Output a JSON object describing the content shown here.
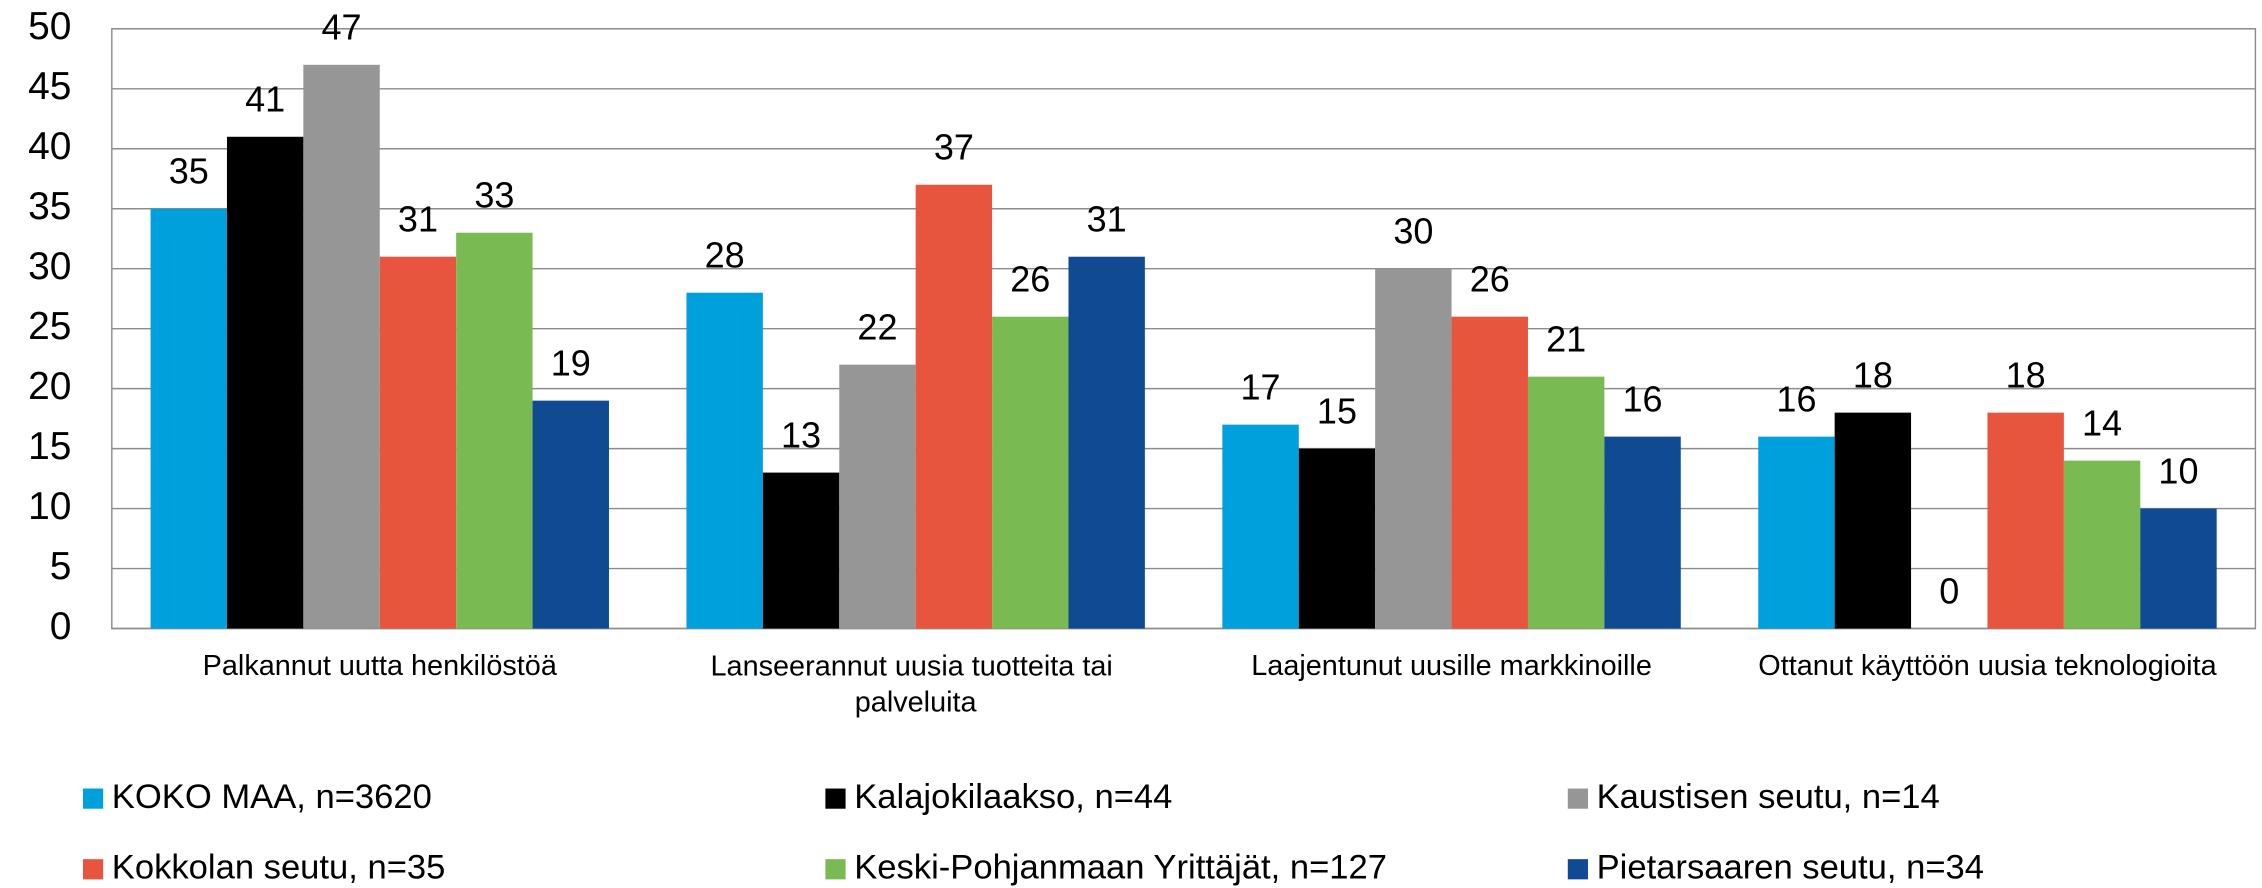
{
  "chart_data": {
    "type": "bar",
    "categories": [
      "Palkannut uutta henkilöstöä",
      "Lanseerannut uusia tuotteita tai palveluita",
      "Laajentunut uusille markkinoille",
      "Ottanut käyttöön uusia teknologioita"
    ],
    "series": [
      {
        "name": "KOKO MAA, n=3620",
        "color": "#00a0dc",
        "values": [
          35,
          28,
          17,
          16
        ]
      },
      {
        "name": "Kalajokilaakso, n=44",
        "color": "#000000",
        "values": [
          41,
          13,
          15,
          18
        ]
      },
      {
        "name": "Kaustisen seutu, n=14",
        "color": "#969696",
        "values": [
          47,
          22,
          30,
          0
        ]
      },
      {
        "name": "Kokkolan seutu, n=35",
        "color": "#e8553e",
        "values": [
          31,
          37,
          26,
          18
        ]
      },
      {
        "name": "Keski-Pohjanmaan Yrittäjät, n=127",
        "color": "#7aba52",
        "values": [
          33,
          26,
          21,
          14
        ]
      },
      {
        "name": "Pietarsaaren seutu, n=34",
        "color": "#0f4a92",
        "values": [
          19,
          31,
          16,
          10
        ]
      }
    ],
    "ylim": [
      0,
      50
    ],
    "yticks": [
      0,
      5,
      10,
      15,
      20,
      25,
      30,
      35,
      40,
      45,
      50
    ],
    "grid": true,
    "legend": "bottom"
  }
}
